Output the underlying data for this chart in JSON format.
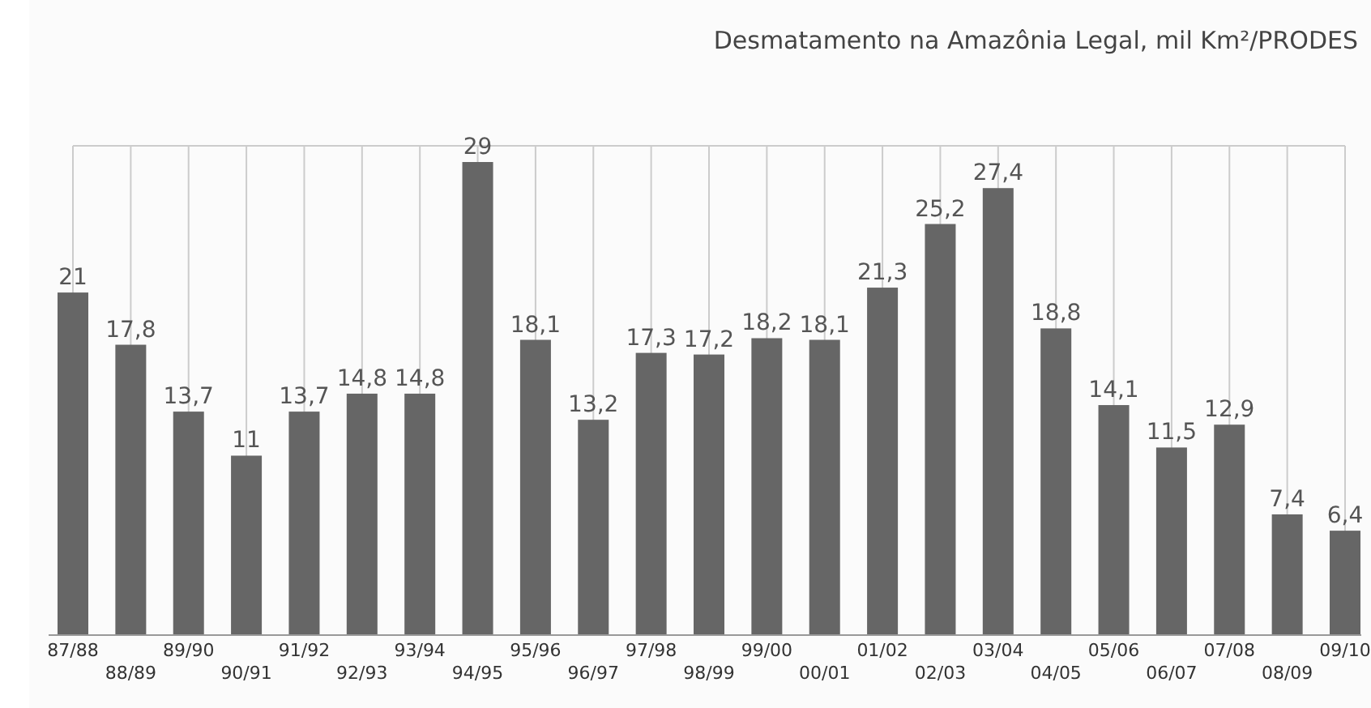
{
  "chart_data": {
    "type": "bar",
    "title": "Desmatamento na Amazônia Legal, mil Km²/PRODES",
    "categories": [
      "87/88",
      "88/89",
      "89/90",
      "90/91",
      "91/92",
      "92/93",
      "93/94",
      "94/95",
      "95/96",
      "96/97",
      "97/98",
      "98/99",
      "99/00",
      "00/01",
      "01/02",
      "02/03",
      "03/04",
      "04/05",
      "05/06",
      "06/07",
      "07/08",
      "08/09",
      "09/10"
    ],
    "values": [
      21,
      17.8,
      13.7,
      11,
      13.7,
      14.8,
      14.8,
      29,
      18.1,
      13.2,
      17.3,
      17.2,
      18.2,
      18.1,
      21.3,
      25.2,
      27.4,
      18.8,
      14.1,
      11.5,
      12.9,
      7.4,
      6.4
    ],
    "value_labels": [
      "21",
      "17,8",
      "13,7",
      "11",
      "13,7",
      "14,8",
      "14,8",
      "29",
      "18,1",
      "13,2",
      "17,3",
      "17,2",
      "18,2",
      "18,1",
      "21,3",
      "25,2",
      "27,4",
      "18,8",
      "14,1",
      "11,5",
      "12,9",
      "7,4",
      "6,4"
    ],
    "color": "#666666",
    "grid": "x"
  }
}
